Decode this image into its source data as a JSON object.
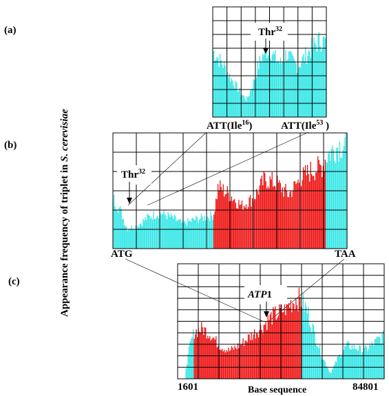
{
  "y_axis_label": {
    "prefix": "Appearance frequency of triplet in ",
    "species": "S. cerevisiae"
  },
  "colors": {
    "cyan": "#33e6e6",
    "red": "#ee1111",
    "grid": "#000000"
  },
  "chart_data": [
    {
      "type": "bar",
      "panel_label": "(a)",
      "annotations": [
        {
          "text": "Thr",
          "sup": "32",
          "arrow": true
        },
        {
          "text": "ATT(Ile",
          "sup": "16",
          "suffix": ")"
        },
        {
          "text": "ATT(Ile",
          "sup": "53",
          "suffix": " )"
        }
      ],
      "segments": [
        {
          "from": 0,
          "to": 1,
          "color": "cyan"
        }
      ],
      "profile": [
        [
          0,
          0.62
        ],
        [
          0.05,
          0.55
        ],
        [
          0.1,
          0.48
        ],
        [
          0.15,
          0.38
        ],
        [
          0.2,
          0.3
        ],
        [
          0.25,
          0.22
        ],
        [
          0.3,
          0.16
        ],
        [
          0.35,
          0.3
        ],
        [
          0.4,
          0.48
        ],
        [
          0.45,
          0.6
        ],
        [
          0.5,
          0.64
        ],
        [
          0.55,
          0.55
        ],
        [
          0.6,
          0.5
        ],
        [
          0.65,
          0.6
        ],
        [
          0.7,
          0.52
        ],
        [
          0.75,
          0.48
        ],
        [
          0.8,
          0.55
        ],
        [
          0.85,
          0.62
        ],
        [
          0.9,
          0.68
        ],
        [
          0.95,
          0.72
        ],
        [
          1,
          0.7
        ]
      ],
      "grid": {
        "rows": 8,
        "cols": 8
      }
    },
    {
      "type": "bar",
      "panel_label": "(b)",
      "annotations": [
        {
          "text": "Thr",
          "sup": "32",
          "arrow": true
        },
        {
          "text": "ATG"
        },
        {
          "text": "TAA"
        }
      ],
      "segments": [
        {
          "from": 0,
          "to": 0.43,
          "color": "cyan"
        },
        {
          "from": 0.43,
          "to": 0.91,
          "color": "red"
        },
        {
          "from": 0.91,
          "to": 1,
          "color": "cyan"
        }
      ],
      "profile": [
        [
          0,
          0.45
        ],
        [
          0.03,
          0.35
        ],
        [
          0.06,
          0.18
        ],
        [
          0.1,
          0.2
        ],
        [
          0.15,
          0.28
        ],
        [
          0.2,
          0.32
        ],
        [
          0.25,
          0.28
        ],
        [
          0.3,
          0.22
        ],
        [
          0.35,
          0.26
        ],
        [
          0.4,
          0.28
        ],
        [
          0.43,
          0.3
        ],
        [
          0.45,
          0.55
        ],
        [
          0.5,
          0.48
        ],
        [
          0.55,
          0.38
        ],
        [
          0.6,
          0.45
        ],
        [
          0.65,
          0.62
        ],
        [
          0.7,
          0.58
        ],
        [
          0.75,
          0.48
        ],
        [
          0.8,
          0.62
        ],
        [
          0.85,
          0.7
        ],
        [
          0.88,
          0.72
        ],
        [
          0.9,
          0.75
        ],
        [
          0.91,
          0.82
        ],
        [
          0.95,
          0.9
        ],
        [
          1,
          0.95
        ]
      ],
      "grid": {
        "rows": 6,
        "cols": 10
      }
    },
    {
      "type": "bar",
      "panel_label": "(c)",
      "annotations": [
        {
          "text": "ATP",
          "suffix": "1",
          "arrow": true,
          "italic": true
        }
      ],
      "xlabel": "Base sequence",
      "x_ticks": [
        "1601",
        "84801"
      ],
      "segments": [
        {
          "from": 0,
          "to": 0.04,
          "color": "white"
        },
        {
          "from": 0.04,
          "to": 0.08,
          "color": "cyan"
        },
        {
          "from": 0.08,
          "to": 0.6,
          "color": "red"
        },
        {
          "from": 0.6,
          "to": 1,
          "color": "cyan"
        }
      ],
      "profile": [
        [
          0,
          0
        ],
        [
          0.04,
          0.1
        ],
        [
          0.06,
          0.3
        ],
        [
          0.08,
          0.42
        ],
        [
          0.12,
          0.45
        ],
        [
          0.16,
          0.4
        ],
        [
          0.2,
          0.3
        ],
        [
          0.25,
          0.25
        ],
        [
          0.3,
          0.3
        ],
        [
          0.35,
          0.38
        ],
        [
          0.4,
          0.45
        ],
        [
          0.45,
          0.55
        ],
        [
          0.5,
          0.6
        ],
        [
          0.55,
          0.68
        ],
        [
          0.58,
          0.72
        ],
        [
          0.6,
          0.7
        ],
        [
          0.63,
          0.6
        ],
        [
          0.66,
          0.42
        ],
        [
          0.7,
          0.2
        ],
        [
          0.74,
          0.05
        ],
        [
          0.78,
          0.2
        ],
        [
          0.82,
          0.3
        ],
        [
          0.86,
          0.28
        ],
        [
          0.9,
          0.25
        ],
        [
          0.94,
          0.3
        ],
        [
          0.97,
          0.35
        ],
        [
          1,
          0.38
        ]
      ],
      "grid": {
        "rows": 10,
        "cols": 10
      }
    }
  ]
}
